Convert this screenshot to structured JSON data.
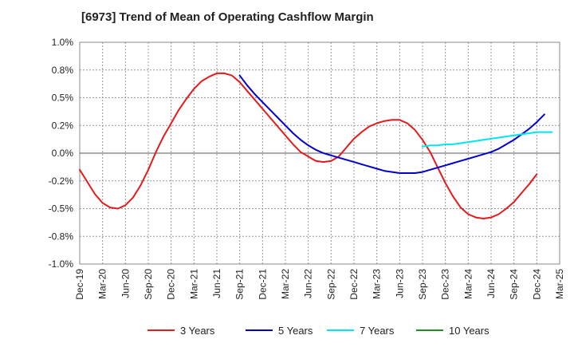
{
  "chart_data": {
    "type": "line",
    "title": "[6973]  Trend of Mean of Operating Cashflow Margin",
    "xlabel": "",
    "ylabel": "",
    "x_ticks": [
      "Dec-19",
      "Mar-20",
      "Jun-20",
      "Sep-20",
      "Dec-20",
      "Mar-21",
      "Jun-21",
      "Sep-21",
      "Dec-21",
      "Mar-22",
      "Jun-22",
      "Sep-22",
      "Dec-22",
      "Mar-23",
      "Jun-23",
      "Sep-23",
      "Dec-23",
      "Mar-24",
      "Jun-24",
      "Sep-24",
      "Dec-24",
      "Mar-25"
    ],
    "y_ticks": [
      {
        "value": 1.0,
        "label": "1.0%"
      },
      {
        "value": 0.75,
        "label": "0.8%"
      },
      {
        "value": 0.5,
        "label": "0.5%"
      },
      {
        "value": 0.25,
        "label": "0.2%"
      },
      {
        "value": 0.0,
        "label": "0.0%"
      },
      {
        "value": -0.25,
        "label": "-0.2%"
      },
      {
        "value": -0.5,
        "label": "-0.5%"
      },
      {
        "value": -0.75,
        "label": "-0.8%"
      },
      {
        "value": -1.0,
        "label": "-1.0%"
      }
    ],
    "ylim": [
      -1.0,
      1.0
    ],
    "grid": true,
    "legend_position": "bottom",
    "series": [
      {
        "name": "3 Years",
        "color": "#e41a1c",
        "start": "Dec-19",
        "values": [
          -0.15,
          -0.26,
          -0.37,
          -0.45,
          -0.49,
          -0.5,
          -0.47,
          -0.4,
          -0.29,
          -0.15,
          0.01,
          0.15,
          0.27,
          0.39,
          0.49,
          0.58,
          0.65,
          0.69,
          0.72,
          0.72,
          0.7,
          0.64,
          0.56,
          0.48,
          0.4,
          0.32,
          0.24,
          0.16,
          0.08,
          0.01,
          -0.03,
          -0.07,
          -0.08,
          -0.07,
          -0.03,
          0.05,
          0.13,
          0.19,
          0.24,
          0.27,
          0.29,
          0.3,
          0.3,
          0.27,
          0.21,
          0.12,
          0.01,
          -0.13,
          -0.27,
          -0.39,
          -0.49,
          -0.55,
          -0.58,
          -0.59,
          -0.58,
          -0.55,
          -0.5,
          -0.44,
          -0.36,
          -0.28,
          -0.19
        ]
      },
      {
        "name": "5 Years",
        "color": "#0000cd",
        "start": "Sep-21",
        "values": [
          0.7,
          0.61,
          0.53,
          0.46,
          0.39,
          0.32,
          0.25,
          0.18,
          0.12,
          0.07,
          0.03,
          0.0,
          -0.02,
          -0.04,
          -0.06,
          -0.08,
          -0.1,
          -0.12,
          -0.14,
          -0.16,
          -0.17,
          -0.18,
          -0.18,
          -0.18,
          -0.17,
          -0.15,
          -0.13,
          -0.11,
          -0.09,
          -0.07,
          -0.05,
          -0.03,
          -0.01,
          0.01,
          0.04,
          0.08,
          0.12,
          0.17,
          0.22,
          0.28,
          0.35
        ]
      },
      {
        "name": "7 Years",
        "color": "#00e5ee",
        "start": "Sep-23",
        "values": [
          0.06,
          0.07,
          0.07,
          0.08,
          0.08,
          0.09,
          0.1,
          0.11,
          0.12,
          0.13,
          0.14,
          0.15,
          0.16,
          0.17,
          0.18,
          0.19,
          0.19,
          0.19
        ]
      },
      {
        "name": "10 Years",
        "color": "#228b22",
        "start": "Sep-24",
        "values": []
      }
    ]
  }
}
